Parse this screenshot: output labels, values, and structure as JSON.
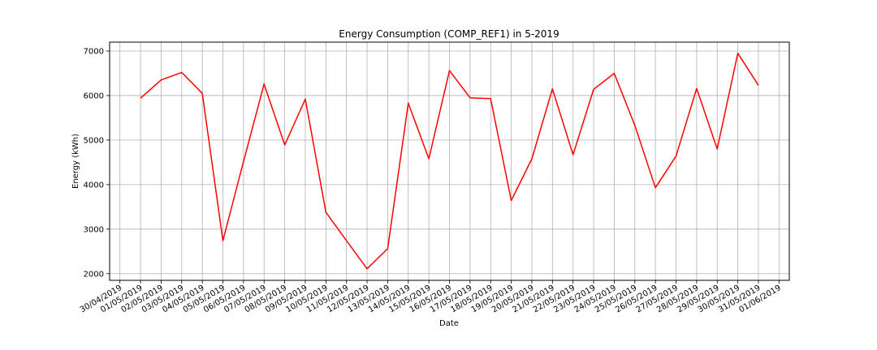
{
  "chart_data": {
    "type": "line",
    "title": "Energy Consumption (COMP_REF1) in 5-2019",
    "xlabel": "Date",
    "ylabel": "Energy (kWh)",
    "grid": true,
    "legend": "none",
    "line_color": "#ff0000",
    "ylim": [
      1850,
      7200
    ],
    "xlim": [
      "29/04/2019 12:00",
      "01/06/2019 12:00"
    ],
    "x_tick_labels": [
      "30/04/2019",
      "01/05/2019",
      "02/05/2019",
      "03/05/2019",
      "04/05/2019",
      "05/05/2019",
      "06/05/2019",
      "07/05/2019",
      "08/05/2019",
      "09/05/2019",
      "10/05/2019",
      "11/05/2019",
      "12/05/2019",
      "13/05/2019",
      "14/05/2019",
      "15/05/2019",
      "16/05/2019",
      "17/05/2019",
      "18/05/2019",
      "19/05/2019",
      "20/05/2019",
      "21/05/2019",
      "22/05/2019",
      "23/05/2019",
      "24/05/2019",
      "25/05/2019",
      "26/05/2019",
      "27/05/2019",
      "28/05/2019",
      "29/05/2019",
      "30/05/2019",
      "31/05/2019",
      "01/06/2019"
    ],
    "y_ticks": [
      2000,
      3000,
      4000,
      5000,
      6000,
      7000
    ],
    "y_tick_labels": [
      "2000",
      "3000",
      "4000",
      "5000",
      "6000",
      "7000"
    ],
    "series": [
      {
        "x": [
          "01/05/2019",
          "02/05/2019",
          "03/05/2019",
          "04/05/2019",
          "05/05/2019",
          "06/05/2019",
          "07/05/2019",
          "08/05/2019",
          "09/05/2019",
          "10/05/2019",
          "11/05/2019",
          "12/05/2019",
          "13/05/2019",
          "14/05/2019",
          "15/05/2019",
          "16/05/2019",
          "17/05/2019",
          "18/05/2019",
          "19/05/2019",
          "20/05/2019",
          "21/05/2019",
          "22/05/2019",
          "23/05/2019",
          "24/05/2019",
          "25/05/2019",
          "26/05/2019",
          "27/05/2019",
          "28/05/2019",
          "29/05/2019",
          "30/05/2019",
          "31/05/2019"
        ],
        "values": [
          5940,
          6350,
          6520,
          6050,
          2740,
          4520,
          6260,
          4890,
          5920,
          3380,
          2740,
          2110,
          2560,
          5830,
          4580,
          6560,
          5950,
          5930,
          3640,
          4580,
          6150,
          4670,
          6140,
          6500,
          5330,
          3930,
          4640,
          6160,
          4800,
          6950,
          6230
        ]
      }
    ]
  }
}
